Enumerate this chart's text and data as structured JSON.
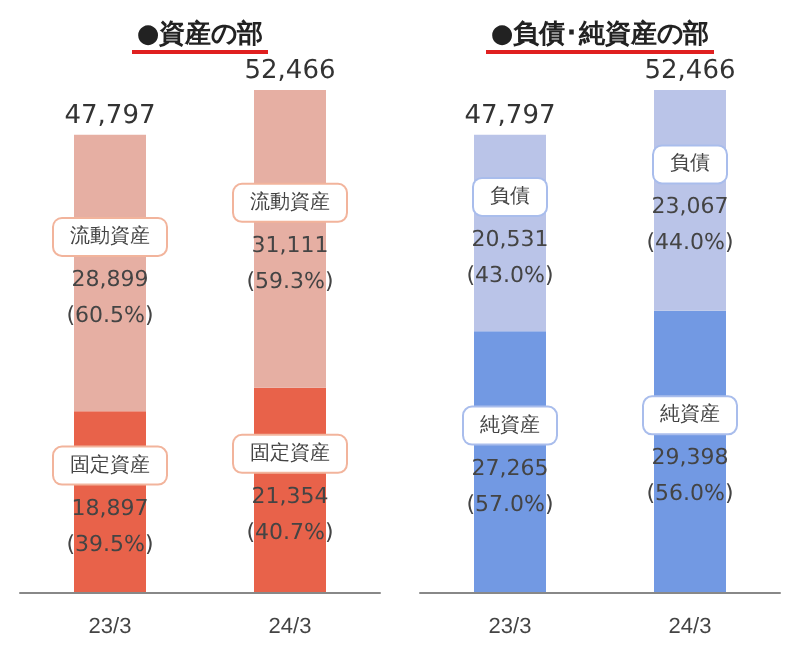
{
  "chart_data": [
    {
      "type": "bar",
      "title": "●資産の部",
      "categories": [
        "23/3",
        "24/3"
      ],
      "stacked": true,
      "legend": false,
      "totals": [
        "47,797",
        "52,466"
      ],
      "series": [
        {
          "name": "固定資産",
          "color": "#e8624a",
          "values": [
            18897,
            21354
          ],
          "value_labels": [
            "18,897\n(39.5%)",
            "21,354\n(40.7%)"
          ]
        },
        {
          "name": "流動資産",
          "color": "#e6afa3",
          "values": [
            28899,
            31111
          ],
          "value_labels": [
            "28,899\n(60.5%)",
            "31,111\n(59.3%)"
          ]
        }
      ]
    },
    {
      "type": "bar",
      "title": "●負債･純資産の部",
      "categories": [
        "23/3",
        "24/3"
      ],
      "stacked": true,
      "legend": false,
      "totals": [
        "47,797",
        "52,466"
      ],
      "series": [
        {
          "name": "純資産",
          "color": "#7299e3",
          "values": [
            27265,
            29398
          ],
          "value_labels": [
            "27,265\n(57.0%)",
            "29,398\n(56.0%)"
          ]
        },
        {
          "name": "負債",
          "color": "#bac4e8",
          "values": [
            20531,
            23067
          ],
          "value_labels": [
            "20,531\n(43.0%)",
            "23,067\n(44.0%)"
          ]
        }
      ]
    }
  ]
}
